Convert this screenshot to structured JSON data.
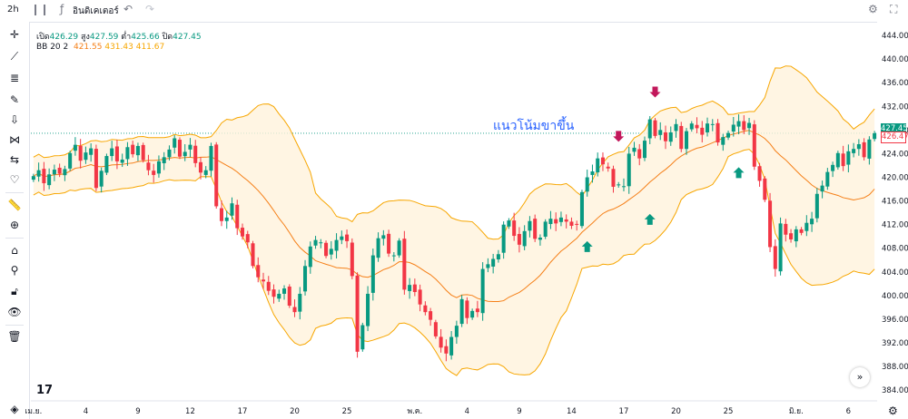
{
  "toolbar": {
    "interval": "2h",
    "candle_icon": "candles-icon",
    "indicators_label": "อินดิเคเตอร์",
    "undo_icon": "undo-icon",
    "redo_icon": "redo-icon",
    "settings_icon": "gear-icon",
    "fullscreen_icon": "fullscreen-icon"
  },
  "left_tools": [
    "crosshair-icon",
    "trendline-icon",
    "fib-icon",
    "brush-icon",
    "arrow-icon",
    "pattern-icon",
    "measure-icon",
    "heart-icon",
    "ruler-icon",
    "zoom-in-icon",
    "home-icon",
    "magnet-icon",
    "lock-icon",
    "eye-icon",
    "trash-icon",
    "layers-icon"
  ],
  "legend": {
    "open_label": "เปิด",
    "open": "426.29",
    "high_label": "สูง",
    "high": "427.59",
    "low_label": "ต่ำ",
    "low": "425.66",
    "close_label": "ปิด",
    "close": "427.45",
    "bb_label": "BB 20 2",
    "bb_mid": "421.55",
    "bb_upper": "431.43",
    "bb_lower": "411.67"
  },
  "annotation": "แนวโน้มขาขึ้น",
  "price_tags": {
    "upper": "427.45",
    "current": "426.47"
  },
  "colors": {
    "up": "#089981",
    "down": "#f23645",
    "bb_mid": "#f57f17",
    "bb_band": "#f7a600",
    "fill": "#fff3dc",
    "annot": "#2962ff"
  },
  "chart_data": {
    "type": "candlestick",
    "y_ticks": [
      "444.00",
      "440.00",
      "436.00",
      "432.00",
      "428.00",
      "424.00",
      "420.00",
      "416.00",
      "412.00",
      "408.00",
      "404.00",
      "400.00",
      "396.00",
      "392.00",
      "388.00",
      "384.00"
    ],
    "ylim": [
      382.5,
      446
    ],
    "x_ticks": [
      {
        "label": "เม.ย.",
        "i": 0
      },
      {
        "label": "4",
        "i": 10
      },
      {
        "label": "9",
        "i": 20
      },
      {
        "label": "12",
        "i": 30
      },
      {
        "label": "17",
        "i": 40
      },
      {
        "label": "20",
        "i": 50
      },
      {
        "label": "25",
        "i": 60
      },
      {
        "label": "พ.ค.",
        "i": 73
      },
      {
        "label": "4",
        "i": 83
      },
      {
        "label": "9",
        "i": 93
      },
      {
        "label": "14",
        "i": 103
      },
      {
        "label": "17",
        "i": 113
      },
      {
        "label": "20",
        "i": 123
      },
      {
        "label": "25",
        "i": 133
      },
      {
        "label": "มิ.ย.",
        "i": 146
      },
      {
        "label": "6",
        "i": 156
      }
    ],
    "closes": [
      420.2,
      421.2,
      419.0,
      420.5,
      421.3,
      420.6,
      421.4,
      424.1,
      425.5,
      422.8,
      424.2,
      424.9,
      418.2,
      421.1,
      423.6,
      424.9,
      422.7,
      423.0,
      425.1,
      423.9,
      425.3,
      422.9,
      421.2,
      420.4,
      422.7,
      423.4,
      424.7,
      426.6,
      423.5,
      424.3,
      425.5,
      422.4,
      420.8,
      421.2,
      425.3,
      415.1,
      412.6,
      413.2,
      415.6,
      411.4,
      410.0,
      409.0,
      405.0,
      403.1,
      402.4,
      400.8,
      399.8,
      400.3,
      401.2,
      398.3,
      397.2,
      400.3,
      405.0,
      408.3,
      409.4,
      409.0,
      406.7,
      407.9,
      409.4,
      410.0,
      409.2,
      403.3,
      390.5,
      395.0,
      400.3,
      406.8,
      409.7,
      410.2,
      407.1,
      406.8,
      409.3,
      401.0,
      401.8,
      400.6,
      398.5,
      397.2,
      395.9,
      393.1,
      391.2,
      390.2,
      393.0,
      394.9,
      399.4,
      396.2,
      397.4,
      397.2,
      404.5,
      405.3,
      406.2,
      407.0,
      412.0,
      412.7,
      410.1,
      408.6,
      410.9,
      412.6,
      409.6,
      409.8,
      412.5,
      413.0,
      412.2,
      413.2,
      412.5,
      411.8,
      412.0,
      417.5,
      420.0,
      421.0,
      423.2,
      422.2,
      421.5,
      418.4,
      418.8,
      418.5,
      424.0,
      425.0,
      423.2,
      426.2,
      429.8,
      427.0,
      428.0,
      426.1,
      427.6,
      429.0,
      424.8,
      427.8,
      429.1,
      428.3,
      427.2,
      429.1,
      429.0,
      425.9,
      426.8,
      427.5,
      428.9,
      429.5,
      428.0,
      429.2,
      421.8,
      419.4,
      416.2,
      408.2,
      404.5,
      412.2,
      410.3,
      409.5,
      411.2,
      410.6,
      412.3,
      413.0,
      417.2,
      418.6,
      420.9,
      422.1,
      424.1,
      421.9,
      424.4,
      424.8,
      425.6,
      423.4,
      426.4,
      427.45
    ]
  }
}
